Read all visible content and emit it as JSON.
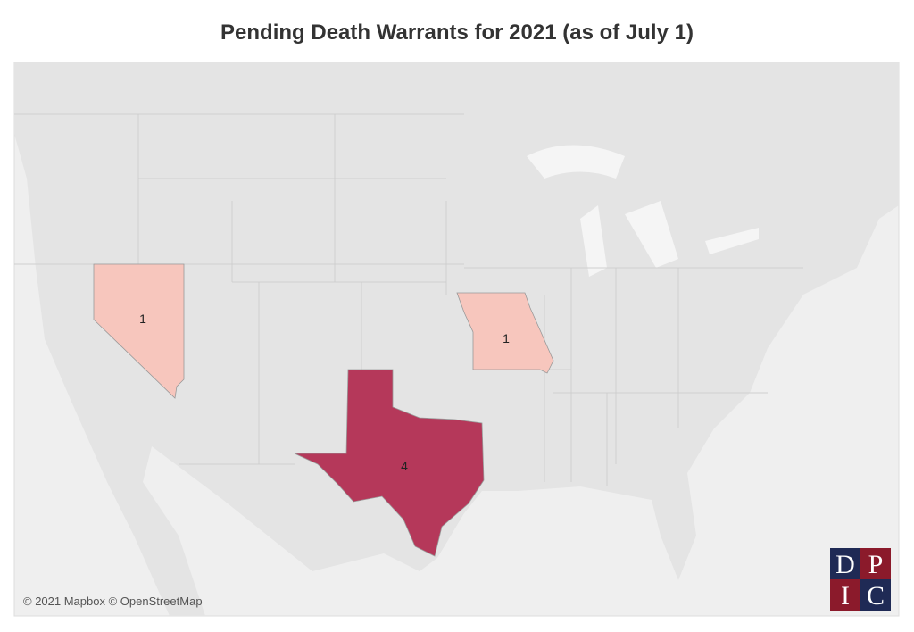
{
  "title": "Pending Death Warrants for 2021 (as of July 1)",
  "regions": [
    {
      "value": 1,
      "color": "#f7c6bd"
    },
    {
      "value": 1,
      "color": "#f7c6bd"
    },
    {
      "value": 4,
      "color": "#b5385a"
    }
  ],
  "attribution": "© 2021 Mapbox © OpenStreetMap",
  "logo": [
    "D",
    "P",
    "I",
    "C"
  ]
}
